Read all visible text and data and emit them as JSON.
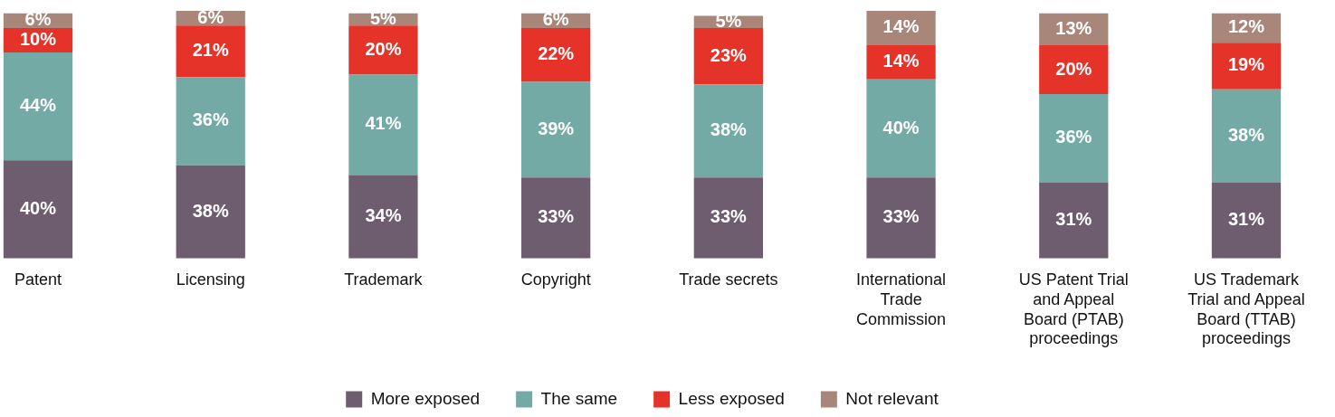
{
  "chart_data": {
    "type": "bar",
    "stacked": true,
    "legend": "bottom",
    "categories": [
      "Patent",
      "Licensing",
      "Trademark",
      "Copyright",
      "Trade secrets",
      "International Trade Commission",
      "US Patent Trial and Appeal Board (PTAB) proceedings",
      "US Trademark Trial and Appeal Board (TTAB) proceedings"
    ],
    "series": [
      {
        "name": "More exposed",
        "color": "#6e5d6f",
        "values": [
          40,
          38,
          34,
          33,
          33,
          33,
          31,
          31
        ],
        "value_labels": [
          "40%",
          "38%",
          "34%",
          "33%",
          "33%",
          "33%",
          "31%",
          "31%"
        ]
      },
      {
        "name": "The same",
        "color": "#74aaa6",
        "values": [
          44,
          36,
          41,
          39,
          38,
          40,
          36,
          38
        ],
        "value_labels": [
          "44%",
          "36%",
          "41%",
          "39%",
          "38%",
          "40%",
          "36%",
          "38%"
        ]
      },
      {
        "name": "Less exposed",
        "color": "#e5332a",
        "values": [
          10,
          21,
          20,
          22,
          23,
          14,
          20,
          19
        ],
        "value_labels": [
          "10%",
          "21%",
          "20%",
          "22%",
          "23%",
          "14%",
          "20%",
          "19%"
        ]
      },
      {
        "name": "Not relevant",
        "color": "#a8877a",
        "values": [
          6,
          6,
          5,
          6,
          5,
          14,
          13,
          12
        ],
        "value_labels": [
          "6%",
          "6%",
          "5%",
          "6%",
          "5%",
          "14%",
          "13%",
          "12%"
        ]
      }
    ]
  }
}
